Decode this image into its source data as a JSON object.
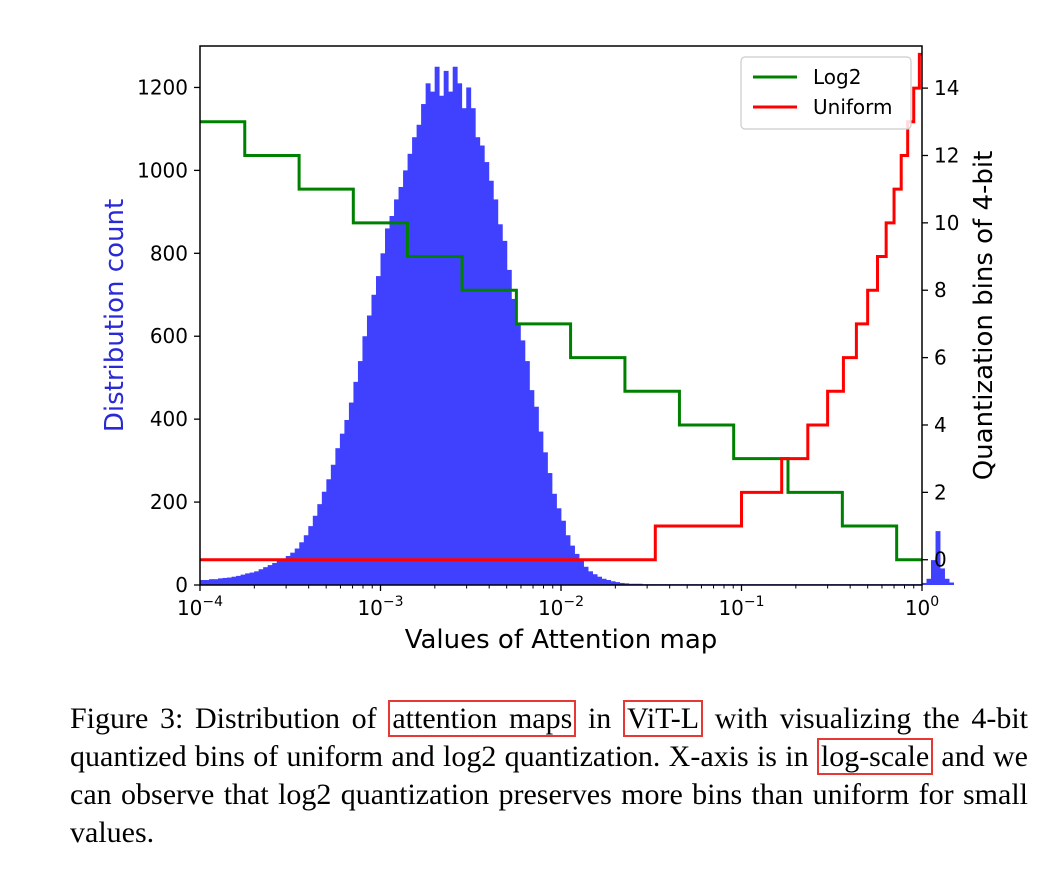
{
  "chart_data": {
    "type": "histogram_with_step_lines",
    "xlabel": "Values of Attention map",
    "ylabel_left": "Distribution count",
    "ylabel_right": "Quantization bins of 4-bit",
    "x_scale": "log",
    "xlim": [
      0.0001,
      1
    ],
    "ylim_left": [
      0,
      1300
    ],
    "ylim_right": [
      -0.75,
      15.25
    ],
    "x_ticks": [
      {
        "value": 0.0001,
        "base": "10",
        "exp": "−4"
      },
      {
        "value": 0.001,
        "base": "10",
        "exp": "−3"
      },
      {
        "value": 0.01,
        "base": "10",
        "exp": "−2"
      },
      {
        "value": 0.1,
        "base": "10",
        "exp": "−1"
      },
      {
        "value": 1,
        "base": "10",
        "exp": "0"
      }
    ],
    "y_ticks_left": [
      {
        "value": 0,
        "label": "0"
      },
      {
        "value": 200,
        "label": "200"
      },
      {
        "value": 400,
        "label": "400"
      },
      {
        "value": 600,
        "label": "600"
      },
      {
        "value": 800,
        "label": "800"
      },
      {
        "value": 1000,
        "label": "1000"
      },
      {
        "value": 1200,
        "label": "1200"
      }
    ],
    "y_ticks_right": [
      {
        "value": 0,
        "label": "0"
      },
      {
        "value": 2,
        "label": "2"
      },
      {
        "value": 4,
        "label": "4"
      },
      {
        "value": 6,
        "label": "6"
      },
      {
        "value": 8,
        "label": "8"
      },
      {
        "value": 10,
        "label": "10"
      },
      {
        "value": 12,
        "label": "12"
      },
      {
        "value": 14,
        "label": "14"
      }
    ],
    "legend": {
      "position": "top-right",
      "entries": [
        {
          "name": "Log2",
          "color": "#008000"
        },
        {
          "name": "Uniform",
          "color": "#ff0000"
        }
      ]
    },
    "histogram": {
      "color": "#4040ff",
      "log10_start": -4,
      "log10_step": 0.025,
      "counts": [
        12,
        12,
        14,
        14,
        16,
        17,
        18,
        20,
        22,
        25,
        28,
        30,
        33,
        38,
        43,
        48,
        53,
        58,
        64,
        70,
        78,
        88,
        103,
        120,
        142,
        167,
        195,
        225,
        255,
        290,
        330,
        365,
        398,
        440,
        490,
        540,
        600,
        650,
        700,
        745,
        800,
        860,
        890,
        930,
        960,
        1000,
        1040,
        1080,
        1110,
        1160,
        1210,
        1190,
        1250,
        1180,
        1240,
        1190,
        1250,
        1210,
        1150,
        1200,
        1150,
        1080,
        1060,
        1020,
        975,
        930,
        870,
        830,
        760,
        690,
        630,
        590,
        540,
        470,
        430,
        370,
        320,
        270,
        220,
        185,
        155,
        120,
        95,
        75,
        58,
        44,
        33,
        26,
        20,
        15,
        12,
        9,
        7,
        5,
        4,
        3,
        3,
        3,
        2,
        2,
        2,
        2,
        2,
        2,
        2,
        2,
        2,
        2,
        2,
        2,
        2,
        2,
        2,
        2,
        2,
        2,
        2,
        2,
        2,
        2,
        2,
        2,
        2,
        2,
        2,
        2,
        2,
        2,
        2,
        2,
        2,
        2,
        2,
        2,
        2,
        2,
        2,
        2,
        2,
        2,
        2,
        2,
        2,
        2,
        2,
        2,
        2,
        2,
        2,
        2,
        2,
        2,
        2,
        2,
        2,
        2,
        2,
        2,
        2,
        2,
        5,
        15,
        60,
        130,
        40,
        15,
        6
      ]
    },
    "series": [
      {
        "name": "Log2",
        "color": "#008000",
        "x": [
          0.0001,
          0.000177,
          0.000177,
          0.000354,
          0.000354,
          0.000707,
          0.000707,
          0.00141,
          0.00141,
          0.00283,
          0.00283,
          0.00566,
          0.00566,
          0.0113,
          0.0113,
          0.0226,
          0.0226,
          0.0453,
          0.0453,
          0.0905,
          0.0905,
          0.181,
          0.181,
          0.362,
          0.362,
          0.724,
          0.724,
          1
        ],
        "y": [
          13,
          13,
          12,
          12,
          11,
          11,
          10,
          10,
          9,
          9,
          8,
          8,
          7,
          7,
          6,
          6,
          5,
          5,
          4,
          4,
          3,
          3,
          2,
          2,
          1,
          1,
          0,
          0
        ]
      },
      {
        "name": "Uniform",
        "color": "#ff0000",
        "x": [
          0.0001,
          0.0333,
          0.0333,
          0.1,
          0.1,
          0.167,
          0.167,
          0.233,
          0.233,
          0.3,
          0.3,
          0.367,
          0.367,
          0.433,
          0.433,
          0.5,
          0.5,
          0.567,
          0.567,
          0.633,
          0.633,
          0.7,
          0.7,
          0.767,
          0.767,
          0.833,
          0.833,
          0.9,
          0.9,
          0.967,
          0.967,
          1
        ],
        "y": [
          0,
          0,
          1,
          1,
          2,
          2,
          3,
          3,
          4,
          4,
          5,
          5,
          6,
          6,
          7,
          7,
          8,
          8,
          9,
          9,
          10,
          10,
          11,
          11,
          12,
          12,
          13,
          13,
          14,
          14,
          15,
          15
        ]
      }
    ]
  },
  "caption": {
    "prefix": "Figure 3: Distribution of ",
    "hl1": "attention maps",
    "mid1": " in ",
    "hl2": "ViT-L",
    "mid2": " with visualizing the 4-bit quantized bins of uniform and log2 quantization.  X-axis is in ",
    "hl3": "log-scale",
    "suffix": " and we can observe that log2 quantization preserves more bins than uniform for small values."
  }
}
